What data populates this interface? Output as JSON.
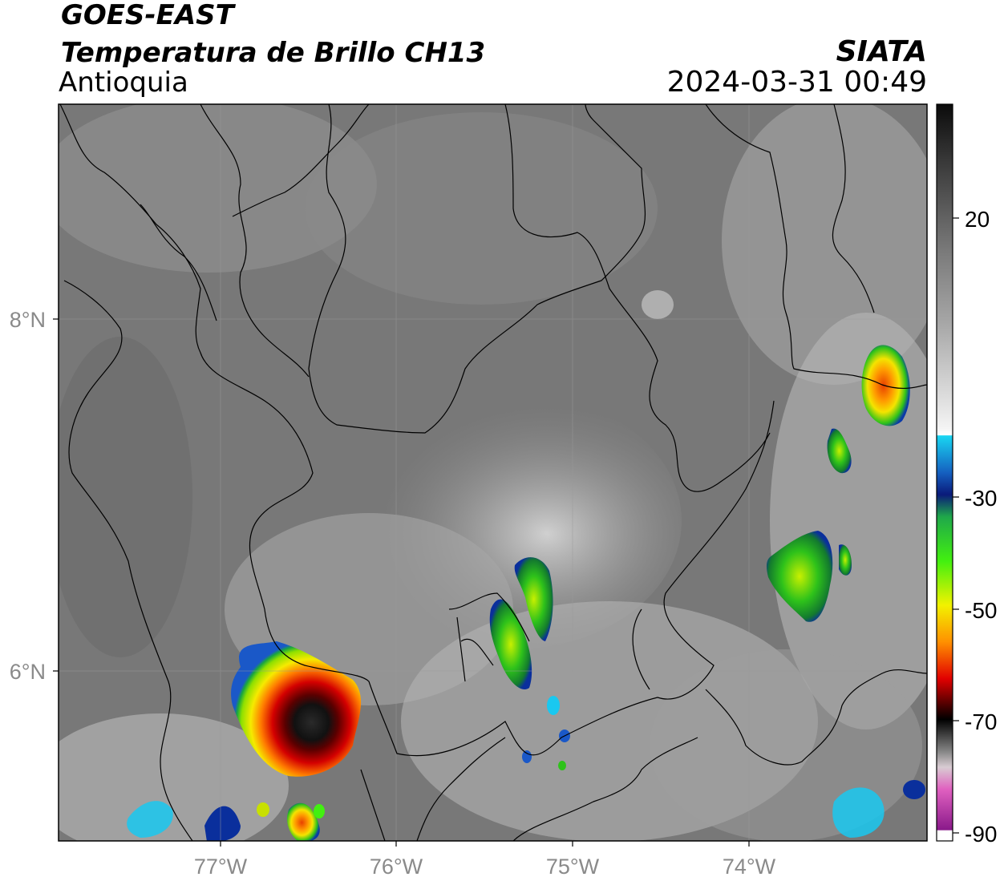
{
  "header": {
    "satellite": "GOES-EAST",
    "product": "Temperatura de Brillo CH13",
    "region": "Antioquia",
    "organization": "SIATA",
    "datetime": "2024-03-31 00:49"
  },
  "map": {
    "lat_labels": [
      "8°N",
      "6°N"
    ],
    "lon_labels": [
      "77°W",
      "76°W",
      "75°W",
      "74°W"
    ],
    "gridlines": true
  },
  "colorbar": {
    "tick_labels": [
      "20",
      "-30",
      "-50",
      "-70",
      "-90"
    ],
    "segments_colors": [
      "#0b0b0b",
      "#4a4a4a",
      "#9a9a9a",
      "#ffffff",
      "#19d6f2",
      "#0a2f9c",
      "#1fa84a",
      "#42f010",
      "#f2f200",
      "#ff8c00",
      "#e10000",
      "#3a0000",
      "#000000",
      "#8a8a8a",
      "#d6c8d0",
      "#e060c0",
      "#8a1a8a",
      "#ffffff"
    ]
  },
  "colors": {
    "storm_core": "#1a1a1a",
    "storm_red": "#c80000",
    "storm_yellow": "#f5e600",
    "storm_green": "#2ec21a",
    "storm_cyan": "#19c8f0"
  }
}
